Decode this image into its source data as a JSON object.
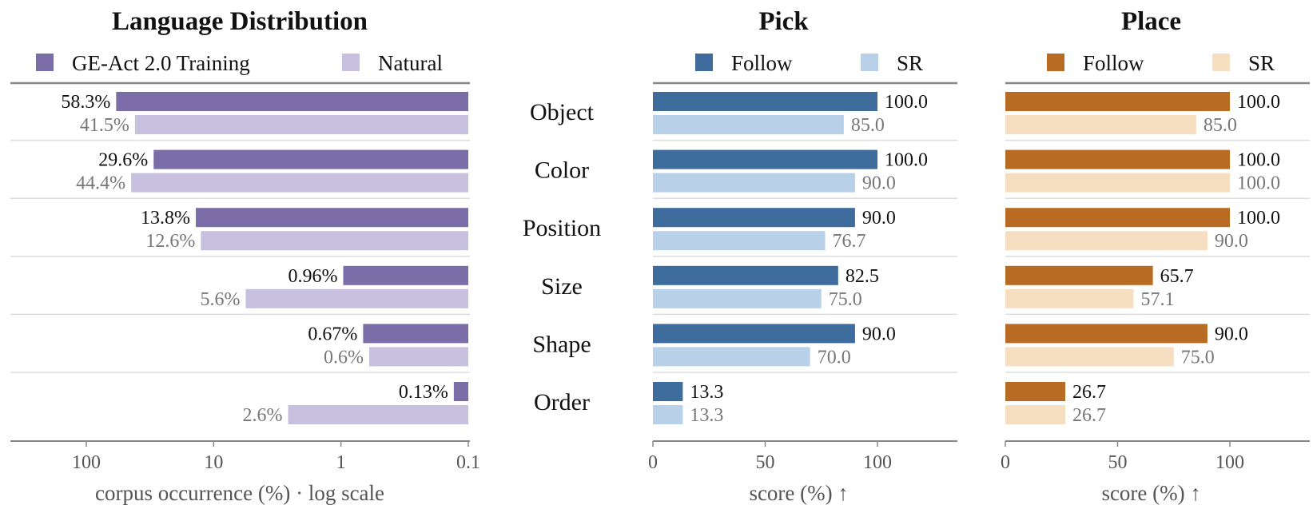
{
  "categories": [
    "Object",
    "Color",
    "Position",
    "Size",
    "Shape",
    "Order"
  ],
  "chart_data": [
    {
      "type": "bar",
      "title": "Language Distribution",
      "orientation": "horizontal",
      "xscale": "log",
      "xaxis_reversed": true,
      "xlim": [
        0.1,
        450
      ],
      "xticks": [
        100,
        10,
        1,
        0.1
      ],
      "xtick_labels": [
        "100",
        "10",
        "1",
        "0.1"
      ],
      "xlabel": "corpus occurrence (%) · log scale",
      "legend_position": "top",
      "categories": [
        "Object",
        "Color",
        "Position",
        "Size",
        "Shape",
        "Order"
      ],
      "series": [
        {
          "name": "GE-Act 2.0 Training",
          "color": "#7b6ea8",
          "values": [
            58.3,
            29.6,
            13.8,
            0.96,
            0.67,
            0.13
          ],
          "labels": [
            "58.3%",
            "29.6%",
            "13.8%",
            "0.96%",
            "0.67%",
            "0.13%"
          ]
        },
        {
          "name": "Natural",
          "color": "#c7c0de",
          "values": [
            41.5,
            44.4,
            12.6,
            5.6,
            0.6,
            2.6
          ],
          "labels": [
            "41.5%",
            "44.4%",
            "12.6%",
            "5.6%",
            "0.6%",
            "2.6%"
          ]
        }
      ]
    },
    {
      "type": "bar",
      "title": "Pick",
      "orientation": "horizontal",
      "xlim": [
        0,
        135
      ],
      "xticks": [
        0,
        50,
        100
      ],
      "xtick_labels": [
        "0",
        "50",
        "100"
      ],
      "xlabel": "score (%) ↑",
      "legend_position": "top",
      "categories": [
        "Object",
        "Color",
        "Position",
        "Size",
        "Shape",
        "Order"
      ],
      "series": [
        {
          "name": "Follow",
          "color": "#3e6c9c",
          "values": [
            100.0,
            100.0,
            90.0,
            82.5,
            90.0,
            13.3
          ],
          "labels": [
            "100.0",
            "100.0",
            "90.0",
            "82.5",
            "90.0",
            "13.3"
          ]
        },
        {
          "name": "SR",
          "color": "#b8d1e8",
          "values": [
            85.0,
            90.0,
            76.7,
            75.0,
            70.0,
            13.3
          ],
          "labels": [
            "85.0",
            "90.0",
            "76.7",
            "75.0",
            "70.0",
            "13.3"
          ]
        }
      ]
    },
    {
      "type": "bar",
      "title": "Place",
      "orientation": "horizontal",
      "xlim": [
        0,
        135
      ],
      "xticks": [
        0,
        50,
        100
      ],
      "xtick_labels": [
        "0",
        "50",
        "100"
      ],
      "xlabel": "score (%) ↑",
      "legend_position": "top",
      "categories": [
        "Object",
        "Color",
        "Position",
        "Size",
        "Shape",
        "Order"
      ],
      "series": [
        {
          "name": "Follow",
          "color": "#b86b22",
          "values": [
            100.0,
            100.0,
            100.0,
            65.7,
            90.0,
            26.7
          ],
          "labels": [
            "100.0",
            "100.0",
            "100.0",
            "65.7",
            "90.0",
            "26.7"
          ]
        },
        {
          "name": "SR",
          "color": "#f6dfc0",
          "values": [
            85.0,
            100.0,
            90.0,
            57.1,
            75.0,
            26.7
          ],
          "labels": [
            "85.0",
            "100.0",
            "90.0",
            "57.1",
            "75.0",
            "26.7"
          ]
        }
      ]
    }
  ]
}
